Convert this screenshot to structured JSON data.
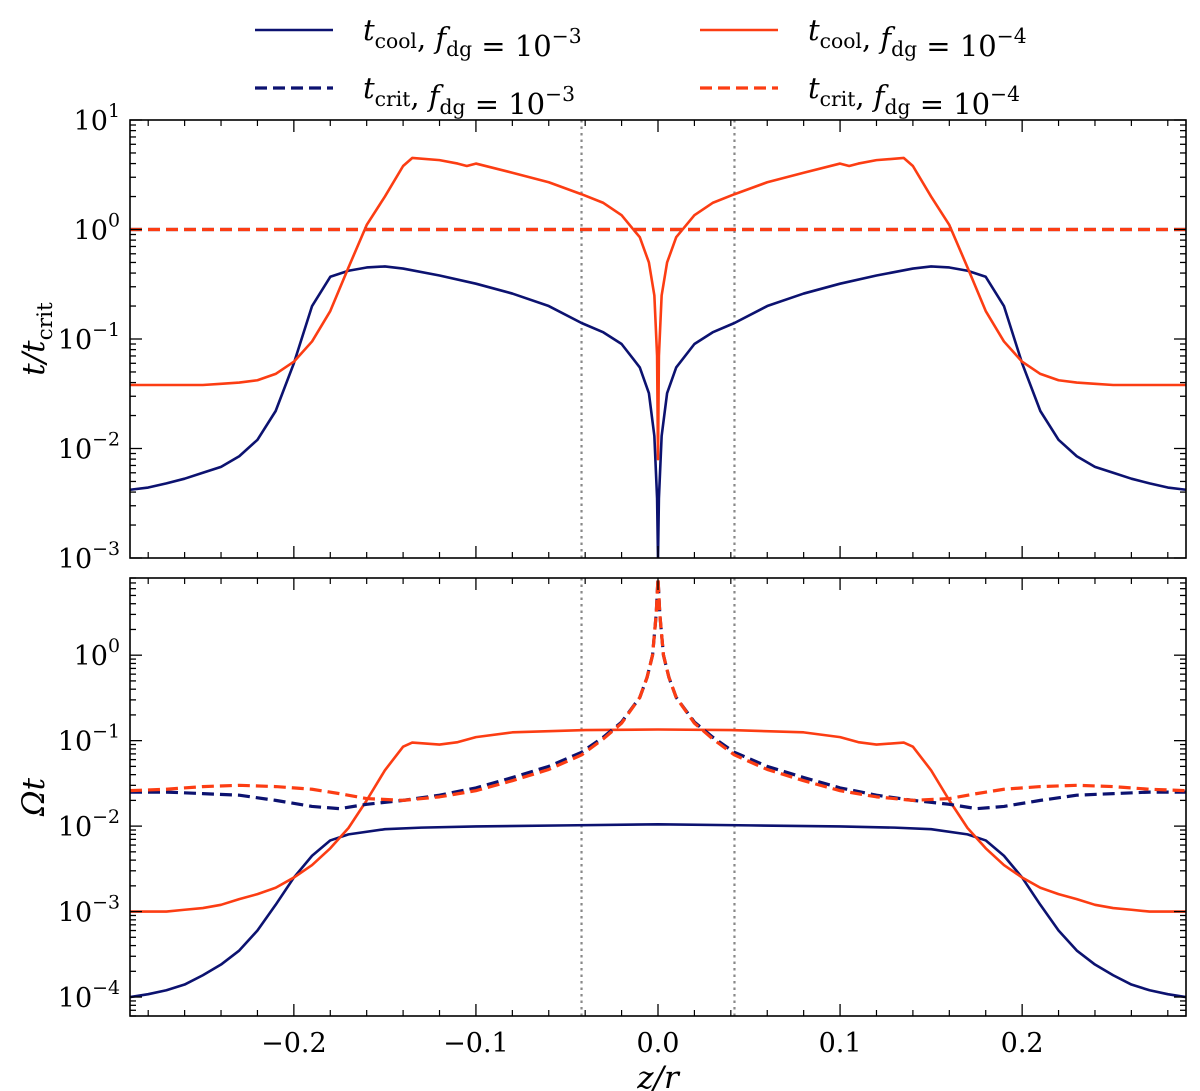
{
  "figure": {
    "xlabel": "z/r",
    "x_ticks": [
      -0.2,
      -0.1,
      0.0,
      0.1,
      0.2
    ],
    "x_tick_labels": [
      "−0.2",
      "−0.1",
      "0.0",
      "0.1",
      "0.2"
    ],
    "xlim": [
      -0.29,
      0.29
    ],
    "vlines_x": [
      -0.042,
      0.042
    ],
    "colors": {
      "f1e3": "#0c1270",
      "f1e4": "#fc3d13",
      "vline": "#888888"
    }
  },
  "legend": [
    {
      "label": "t_cool, f_dg = 10^-3",
      "color": "#0c1270",
      "dash": "solid"
    },
    {
      "label": "t_cool, f_dg = 10^-4",
      "color": "#fc3d13",
      "dash": "solid"
    },
    {
      "label": "t_crit, f_dg = 10^-3",
      "color": "#0c1270",
      "dash": "dashed"
    },
    {
      "label": "t_crit, f_dg = 10^-4",
      "color": "#fc3d13",
      "dash": "dashed"
    }
  ],
  "chart_data": [
    {
      "type": "line",
      "panel": "top",
      "ylabel": "t/t_crit",
      "yscale": "log",
      "ylim": [
        0.001,
        10
      ],
      "y_ticks": [
        0.001,
        0.01,
        0.1,
        1,
        10
      ],
      "y_tick_labels": [
        "10^-3",
        "10^-2",
        "10^-1",
        "10^0",
        "10^1"
      ],
      "series": [
        {
          "name": "t_cool, f_dg = 10^-3",
          "color": "#0c1270",
          "dash": "solid",
          "x": [
            0.0,
            0.0005,
            0.002,
            0.005,
            0.01,
            0.02,
            0.03,
            0.042,
            0.06,
            0.08,
            0.1,
            0.12,
            0.14,
            0.15,
            0.16,
            0.17,
            0.18,
            0.19,
            0.2,
            0.21,
            0.22,
            0.23,
            0.24,
            0.25,
            0.26,
            0.27,
            0.28,
            0.29
          ],
          "y": [
            0.001,
            0.0035,
            0.013,
            0.032,
            0.055,
            0.09,
            0.115,
            0.14,
            0.2,
            0.26,
            0.32,
            0.38,
            0.44,
            0.46,
            0.45,
            0.42,
            0.37,
            0.2,
            0.06,
            0.022,
            0.012,
            0.0085,
            0.0068,
            0.006,
            0.0053,
            0.0048,
            0.0044,
            0.0042
          ]
        },
        {
          "name": "t_cool, f_dg = 10^-4",
          "color": "#fc3d13",
          "dash": "solid",
          "x": [
            0.0,
            0.0005,
            0.002,
            0.005,
            0.01,
            0.02,
            0.03,
            0.042,
            0.06,
            0.08,
            0.1,
            0.105,
            0.11,
            0.12,
            0.135,
            0.14,
            0.15,
            0.16,
            0.17,
            0.18,
            0.19,
            0.2,
            0.21,
            0.22,
            0.23,
            0.24,
            0.25,
            0.26,
            0.27,
            0.28,
            0.29
          ],
          "y": [
            0.008,
            0.07,
            0.25,
            0.5,
            0.85,
            1.35,
            1.75,
            2.1,
            2.7,
            3.3,
            4.0,
            3.8,
            4.0,
            4.3,
            4.5,
            3.8,
            2.0,
            1.1,
            0.45,
            0.18,
            0.095,
            0.062,
            0.048,
            0.042,
            0.04,
            0.039,
            0.038,
            0.038,
            0.038,
            0.038,
            0.038
          ]
        },
        {
          "name": "t_crit, f_dg = 10^-3",
          "color": "#0c1270",
          "dash": "dashed",
          "x": [
            -0.29,
            0.29
          ],
          "y": [
            1.0,
            1.0
          ]
        },
        {
          "name": "t_crit, f_dg = 10^-4",
          "color": "#fc3d13",
          "dash": "dashed",
          "x": [
            -0.29,
            0.29
          ],
          "y": [
            1.0,
            1.0
          ]
        }
      ]
    },
    {
      "type": "line",
      "panel": "bottom",
      "ylabel": "Ωt",
      "yscale": "log",
      "ylim": [
        6e-05,
        8
      ],
      "y_ticks": [
        0.0001,
        0.001,
        0.01,
        0.1,
        1
      ],
      "y_tick_labels": [
        "10^-4",
        "10^-3",
        "10^-2",
        "10^-1",
        "10^0"
      ],
      "series": [
        {
          "name": "t_cool, f_dg = 10^-3",
          "color": "#0c1270",
          "dash": "solid",
          "x": [
            0.0,
            0.05,
            0.1,
            0.13,
            0.15,
            0.17,
            0.18,
            0.19,
            0.2,
            0.21,
            0.22,
            0.23,
            0.24,
            0.25,
            0.26,
            0.27,
            0.28,
            0.29
          ],
          "y": [
            0.0105,
            0.0102,
            0.0099,
            0.0096,
            0.0092,
            0.008,
            0.0068,
            0.0045,
            0.0025,
            0.0012,
            0.0006,
            0.00035,
            0.00024,
            0.00018,
            0.00014,
            0.00012,
            0.000108,
            0.0001
          ]
        },
        {
          "name": "t_cool, f_dg = 10^-4",
          "color": "#fc3d13",
          "dash": "solid",
          "x": [
            0.0,
            0.04,
            0.08,
            0.1,
            0.11,
            0.12,
            0.135,
            0.14,
            0.15,
            0.16,
            0.17,
            0.18,
            0.19,
            0.2,
            0.21,
            0.22,
            0.23,
            0.24,
            0.25,
            0.26,
            0.27,
            0.28,
            0.29
          ],
          "y": [
            0.135,
            0.133,
            0.125,
            0.11,
            0.096,
            0.09,
            0.095,
            0.085,
            0.045,
            0.02,
            0.0095,
            0.0055,
            0.0035,
            0.0025,
            0.0019,
            0.0016,
            0.0014,
            0.0012,
            0.0011,
            0.00105,
            0.001,
            0.001,
            0.001
          ]
        },
        {
          "name": "t_crit, f_dg = 10^-3",
          "color": "#0c1270",
          "dash": "dashed",
          "x": [
            0.0,
            0.001,
            0.003,
            0.006,
            0.01,
            0.02,
            0.03,
            0.042,
            0.06,
            0.08,
            0.1,
            0.12,
            0.14,
            0.16,
            0.175,
            0.19,
            0.21,
            0.23,
            0.25,
            0.27,
            0.29
          ],
          "y": [
            8.0,
            3.0,
            1.0,
            0.55,
            0.32,
            0.165,
            0.11,
            0.073,
            0.05,
            0.037,
            0.028,
            0.023,
            0.02,
            0.018,
            0.016,
            0.017,
            0.02,
            0.023,
            0.024,
            0.025,
            0.025
          ]
        },
        {
          "name": "t_crit, f_dg = 10^-4",
          "color": "#fc3d13",
          "dash": "dashed",
          "x": [
            0.0,
            0.001,
            0.003,
            0.006,
            0.01,
            0.02,
            0.03,
            0.042,
            0.06,
            0.08,
            0.1,
            0.12,
            0.14,
            0.16,
            0.175,
            0.19,
            0.21,
            0.23,
            0.25,
            0.27,
            0.29
          ],
          "y": [
            8.0,
            3.0,
            1.0,
            0.55,
            0.32,
            0.16,
            0.105,
            0.068,
            0.046,
            0.034,
            0.026,
            0.022,
            0.02,
            0.021,
            0.024,
            0.027,
            0.029,
            0.03,
            0.029,
            0.027,
            0.026
          ]
        }
      ]
    }
  ]
}
